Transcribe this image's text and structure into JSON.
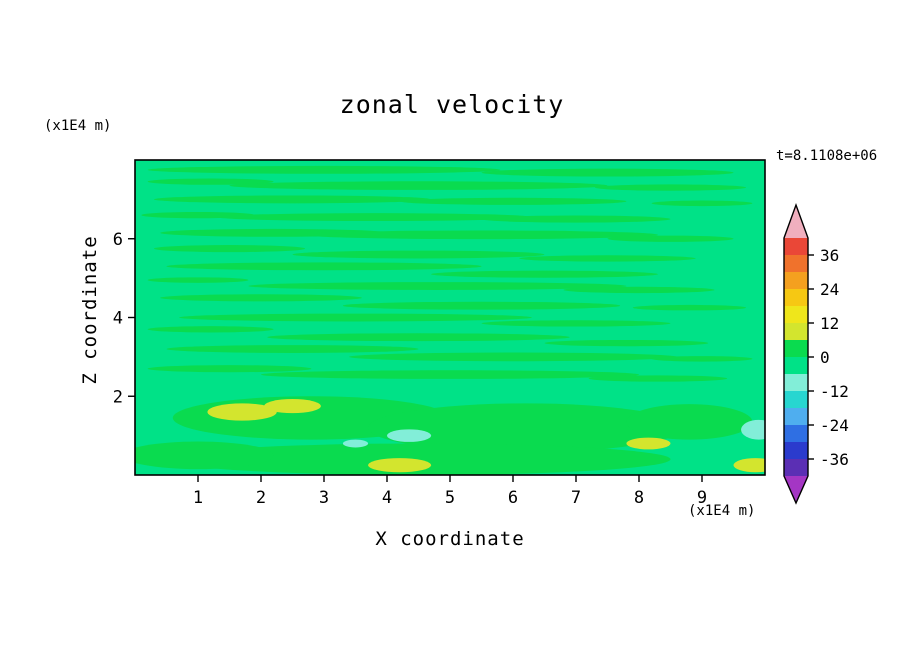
{
  "chart_data": {
    "type": "filled_contour",
    "title": "zonal velocity",
    "timestamp": "t=8.1108e+06",
    "xlabel": "X coordinate",
    "ylabel": "Z coordinate",
    "x_unit": "(x1E4 m)",
    "y_unit": "(x1E4 m)",
    "xlim": [
      0,
      10
    ],
    "ylim": [
      0,
      8
    ],
    "x_ticks": [
      1,
      2,
      3,
      4,
      5,
      6,
      7,
      8,
      9
    ],
    "y_ticks": [
      2,
      4,
      6
    ],
    "contour_level_step": 6,
    "colorbar": {
      "min": -42,
      "max": 42,
      "labels": [
        36,
        24,
        12,
        0,
        -12,
        -24,
        -36
      ],
      "segment_colors_top_to_bottom": [
        "#EA4737",
        "#F0722C",
        "#F4A01F",
        "#F6C813",
        "#EFE61B",
        "#D3E52E",
        "#0ADB4F",
        "#00E287",
        "#82EED8",
        "#27D6D0",
        "#4FAEEF",
        "#2F6FE3",
        "#2B3BCD",
        "#5B2FB4"
      ],
      "arrow_top_color": "#F0AFBE",
      "arrow_bottom_color": "#A436C4"
    },
    "band_colors": {
      "p2": "#D3E52E",
      "p1": "#0ADB4F",
      "m1": "#00E287",
      "m2": "#82EED8"
    },
    "band_values": {
      "p2": "6..12",
      "p1": "0..6",
      "m1": "-6..0",
      "m2": "-12..-6"
    },
    "background_band": "m1",
    "field_blob_format": [
      "x",
      "z",
      "rx",
      "rz",
      "band"
    ],
    "field_blobs": [
      [
        3.0,
        7.75,
        2.8,
        0.1,
        "p1"
      ],
      [
        7.5,
        7.68,
        2.0,
        0.1,
        "p1"
      ],
      [
        1.2,
        7.45,
        1.0,
        0.08,
        "p1"
      ],
      [
        4.5,
        7.35,
        3.0,
        0.11,
        "p1"
      ],
      [
        8.5,
        7.3,
        1.2,
        0.08,
        "p1"
      ],
      [
        2.5,
        7.0,
        2.2,
        0.1,
        "p1"
      ],
      [
        6.0,
        6.95,
        1.8,
        0.09,
        "p1"
      ],
      [
        9.0,
        6.9,
        0.8,
        0.07,
        "p1"
      ],
      [
        1.0,
        6.6,
        0.9,
        0.08,
        "p1"
      ],
      [
        3.8,
        6.55,
        2.5,
        0.1,
        "p1"
      ],
      [
        7.0,
        6.5,
        1.5,
        0.09,
        "p1"
      ],
      [
        2.2,
        6.15,
        1.8,
        0.1,
        "p1"
      ],
      [
        5.5,
        6.1,
        2.8,
        0.11,
        "p1"
      ],
      [
        8.5,
        6.0,
        1.0,
        0.08,
        "p1"
      ],
      [
        1.5,
        5.75,
        1.2,
        0.09,
        "p1"
      ],
      [
        4.5,
        5.6,
        2.0,
        0.1,
        "p1"
      ],
      [
        7.5,
        5.5,
        1.4,
        0.08,
        "p1"
      ],
      [
        3.0,
        5.3,
        2.5,
        0.1,
        "p1"
      ],
      [
        6.5,
        5.1,
        1.8,
        0.09,
        "p1"
      ],
      [
        1.0,
        4.95,
        0.8,
        0.07,
        "p1"
      ],
      [
        4.8,
        4.8,
        3.0,
        0.1,
        "p1"
      ],
      [
        8.0,
        4.7,
        1.2,
        0.08,
        "p1"
      ],
      [
        2.0,
        4.5,
        1.6,
        0.09,
        "p1"
      ],
      [
        5.5,
        4.3,
        2.2,
        0.1,
        "p1"
      ],
      [
        8.8,
        4.25,
        0.9,
        0.07,
        "p1"
      ],
      [
        3.5,
        4.0,
        2.8,
        0.1,
        "p1"
      ],
      [
        7.0,
        3.85,
        1.5,
        0.08,
        "p1"
      ],
      [
        1.2,
        3.7,
        1.0,
        0.08,
        "p1"
      ],
      [
        4.5,
        3.5,
        2.4,
        0.1,
        "p1"
      ],
      [
        7.8,
        3.35,
        1.3,
        0.08,
        "p1"
      ],
      [
        2.5,
        3.2,
        2.0,
        0.1,
        "p1"
      ],
      [
        6.0,
        3.0,
        2.6,
        0.11,
        "p1"
      ],
      [
        9.0,
        2.95,
        0.8,
        0.07,
        "p1"
      ],
      [
        1.5,
        2.7,
        1.3,
        0.09,
        "p1"
      ],
      [
        5.0,
        2.55,
        3.0,
        0.11,
        "p1"
      ],
      [
        8.3,
        2.45,
        1.1,
        0.08,
        "p1"
      ],
      [
        2.8,
        1.45,
        2.2,
        0.55,
        "p1"
      ],
      [
        6.2,
        1.2,
        2.5,
        0.62,
        "p1"
      ],
      [
        8.8,
        1.35,
        1.0,
        0.45,
        "p1"
      ],
      [
        4.5,
        0.4,
        4.0,
        0.4,
        "p1"
      ],
      [
        1.0,
        0.5,
        1.2,
        0.35,
        "p1"
      ],
      [
        1.7,
        1.6,
        0.55,
        0.22,
        "p2"
      ],
      [
        2.5,
        1.75,
        0.45,
        0.18,
        "p2"
      ],
      [
        4.2,
        0.25,
        0.5,
        0.18,
        "p2"
      ],
      [
        8.15,
        0.8,
        0.35,
        0.15,
        "p2"
      ],
      [
        9.85,
        0.25,
        0.35,
        0.18,
        "p2"
      ],
      [
        4.35,
        1.0,
        0.35,
        0.16,
        "m2"
      ],
      [
        9.9,
        1.15,
        0.28,
        0.25,
        "m2"
      ],
      [
        3.5,
        0.8,
        0.2,
        0.1,
        "m2"
      ]
    ]
  }
}
